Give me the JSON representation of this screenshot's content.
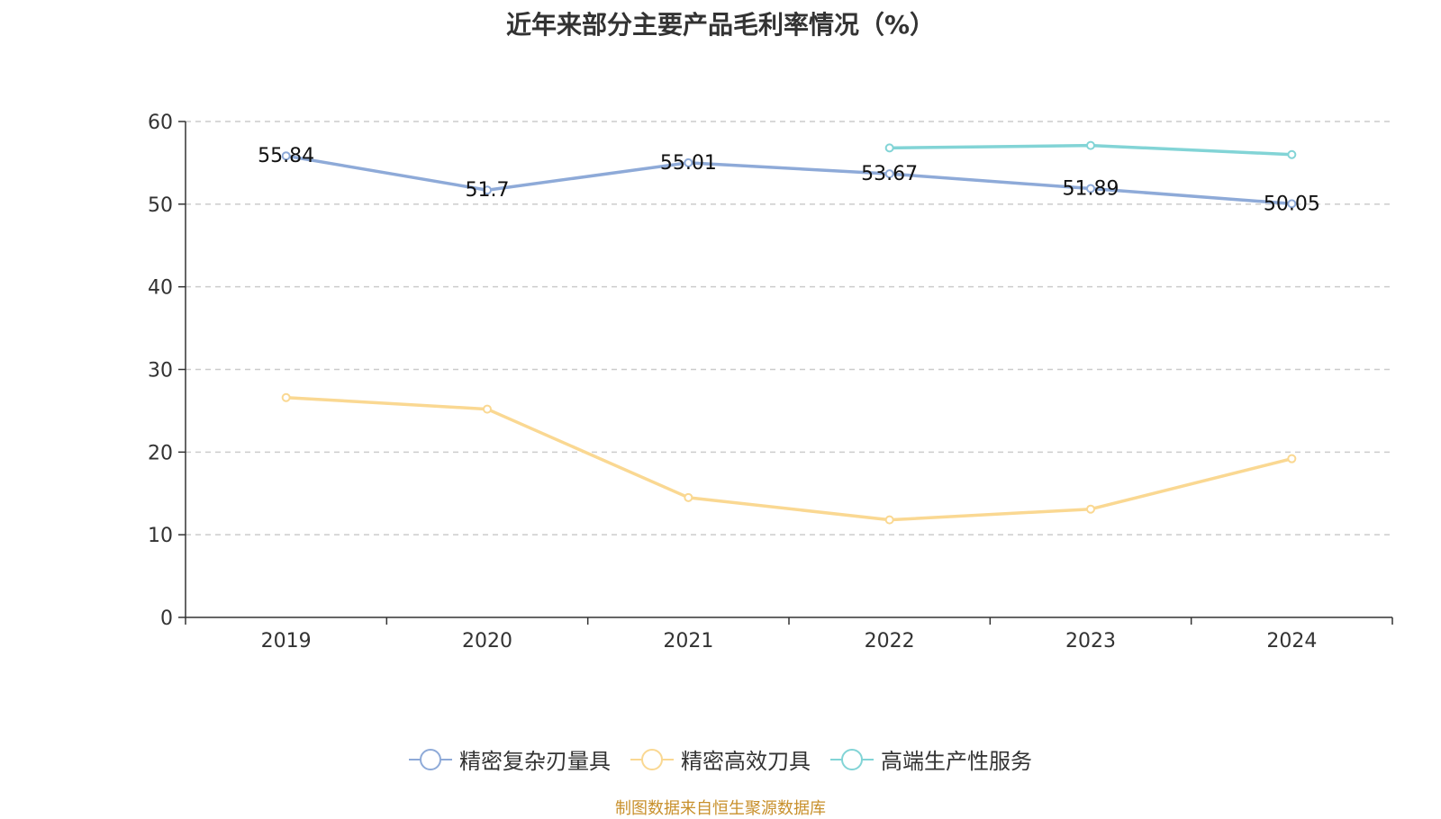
{
  "title": "近年来部分主要产品毛利率情况（%）",
  "source": "制图数据来自恒生聚源数据库",
  "chart_data": {
    "type": "line",
    "title": "近年来部分主要产品毛利率情况（%）",
    "categories": [
      "2019",
      "2020",
      "2021",
      "2022",
      "2023",
      "2024"
    ],
    "ylim": [
      0,
      60
    ],
    "yticks": [
      0,
      10,
      20,
      30,
      40,
      50,
      60
    ],
    "grid": true,
    "legend_position": "bottom",
    "series": [
      {
        "name": "精密复杂刃量具",
        "color": "#8eaad8",
        "values": [
          55.84,
          51.7,
          55.01,
          53.67,
          51.89,
          50.05
        ],
        "labels": [
          "55.84",
          "51.7",
          "55.01",
          "53.67",
          "51.89",
          "50.05"
        ]
      },
      {
        "name": "精密高效刀具",
        "color": "#fad892",
        "values": [
          26.6,
          25.2,
          14.5,
          11.8,
          13.1,
          19.2
        ],
        "labels": []
      },
      {
        "name": "高端生产性服务",
        "color": "#82d4d6",
        "values": [
          null,
          null,
          null,
          56.8,
          57.1,
          56.0
        ],
        "labels": []
      }
    ]
  }
}
